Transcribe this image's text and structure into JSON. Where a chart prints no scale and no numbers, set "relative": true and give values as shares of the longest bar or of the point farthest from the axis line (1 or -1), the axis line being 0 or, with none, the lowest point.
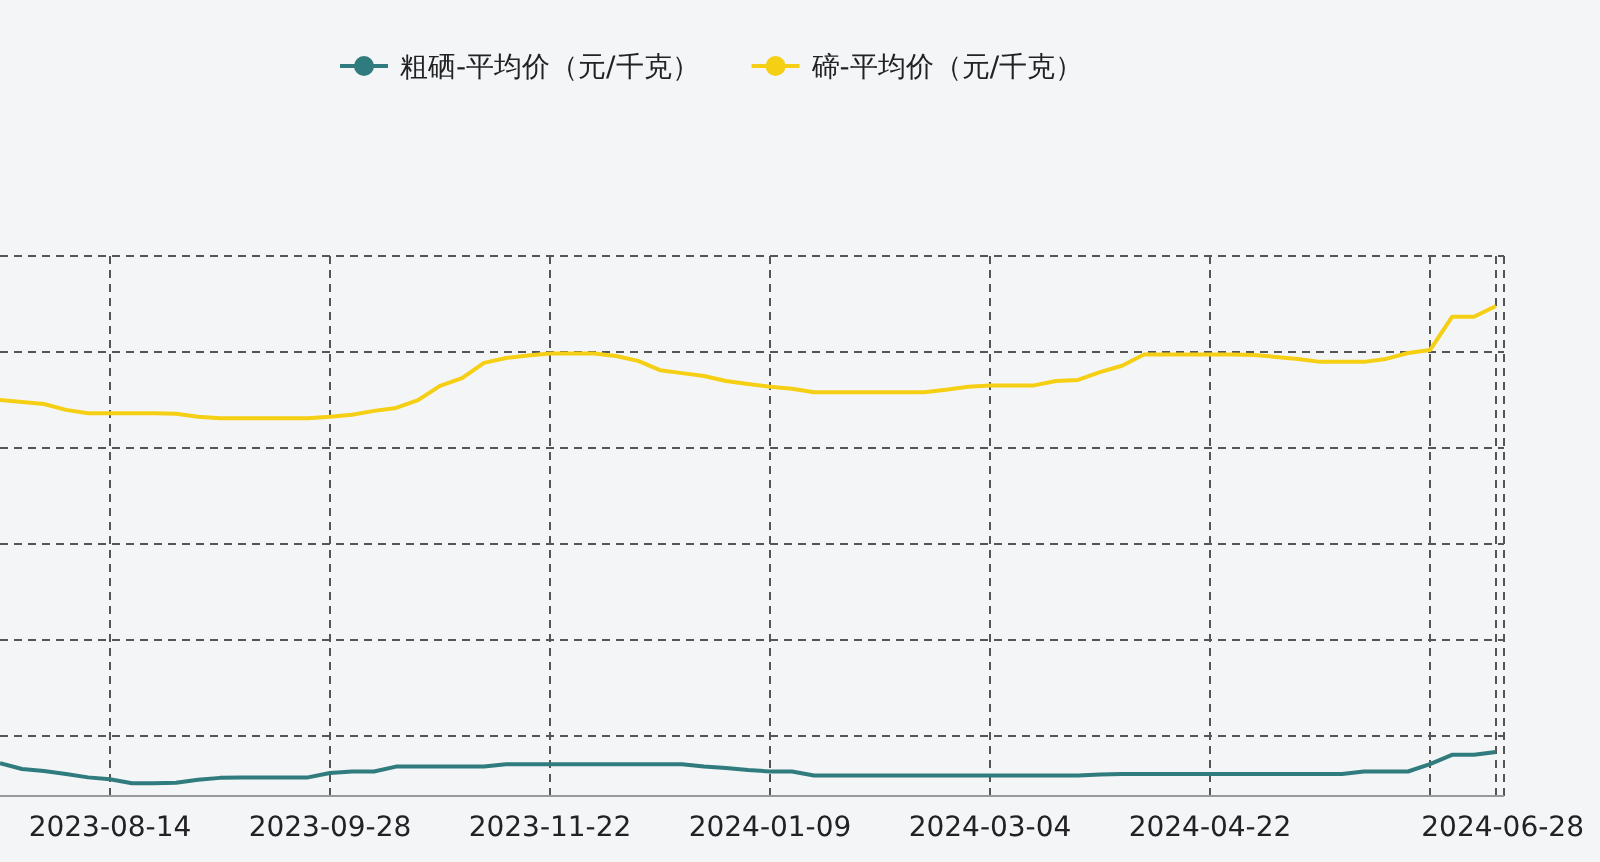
{
  "chart_data": {
    "type": "line",
    "relative": true,
    "grid": true,
    "legend": "top",
    "line_style": "solid",
    "categories": [
      null,
      null,
      null,
      null,
      null,
      "2023-08-14",
      null,
      null,
      null,
      null,
      null,
      null,
      null,
      null,
      null,
      "2023-09-28",
      null,
      null,
      null,
      null,
      null,
      null,
      null,
      null,
      null,
      "2023-11-22",
      null,
      null,
      null,
      null,
      null,
      null,
      null,
      null,
      null,
      "2024-01-09",
      null,
      null,
      null,
      null,
      null,
      null,
      null,
      null,
      null,
      "2024-03-04",
      null,
      null,
      null,
      null,
      null,
      null,
      null,
      null,
      null,
      "2024-04-22",
      null,
      null,
      null,
      null,
      null,
      null,
      null,
      null,
      null,
      null,
      null,
      null,
      "2024-06-28"
    ],
    "series": [
      {
        "name": "粗硒-平均价（元/千克）",
        "color": "#2f7b7d",
        "values": [
          0.067,
          0.055,
          0.051,
          0.045,
          0.038,
          0.034,
          0.026,
          0.026,
          0.027,
          0.033,
          0.037,
          0.038,
          0.038,
          0.038,
          0.038,
          0.047,
          0.05,
          0.05,
          0.06,
          0.06,
          0.06,
          0.06,
          0.06,
          0.065,
          0.065,
          0.065,
          0.065,
          0.065,
          0.065,
          0.065,
          0.065,
          0.065,
          0.06,
          0.057,
          0.053,
          0.05,
          0.05,
          0.042,
          0.042,
          0.042,
          0.042,
          0.042,
          0.042,
          0.042,
          0.042,
          0.042,
          0.042,
          0.042,
          0.042,
          0.042,
          0.044,
          0.045,
          0.045,
          0.045,
          0.045,
          0.045,
          0.045,
          0.045,
          0.045,
          0.045,
          0.045,
          0.045,
          0.05,
          0.05,
          0.05,
          0.065,
          0.084,
          0.084,
          0.09
        ]
      },
      {
        "name": "碲-平均价（元/千克）",
        "color": "#f5cf14",
        "values": [
          0.808,
          0.804,
          0.8,
          0.788,
          0.781,
          0.781,
          0.781,
          0.781,
          0.78,
          0.774,
          0.771,
          0.771,
          0.771,
          0.771,
          0.771,
          0.774,
          0.778,
          0.786,
          0.792,
          0.808,
          0.837,
          0.853,
          0.884,
          0.894,
          0.899,
          0.903,
          0.903,
          0.903,
          0.898,
          0.888,
          0.869,
          0.863,
          0.857,
          0.847,
          0.841,
          0.835,
          0.831,
          0.824,
          0.824,
          0.824,
          0.824,
          0.824,
          0.824,
          0.829,
          0.835,
          0.838,
          0.838,
          0.838,
          0.847,
          0.849,
          0.865,
          0.878,
          0.901,
          0.901,
          0.901,
          0.901,
          0.901,
          0.9,
          0.896,
          0.892,
          0.886,
          0.886,
          0.886,
          0.892,
          0.904,
          0.91,
          0.978,
          0.978,
          1.0
        ]
      }
    ]
  }
}
